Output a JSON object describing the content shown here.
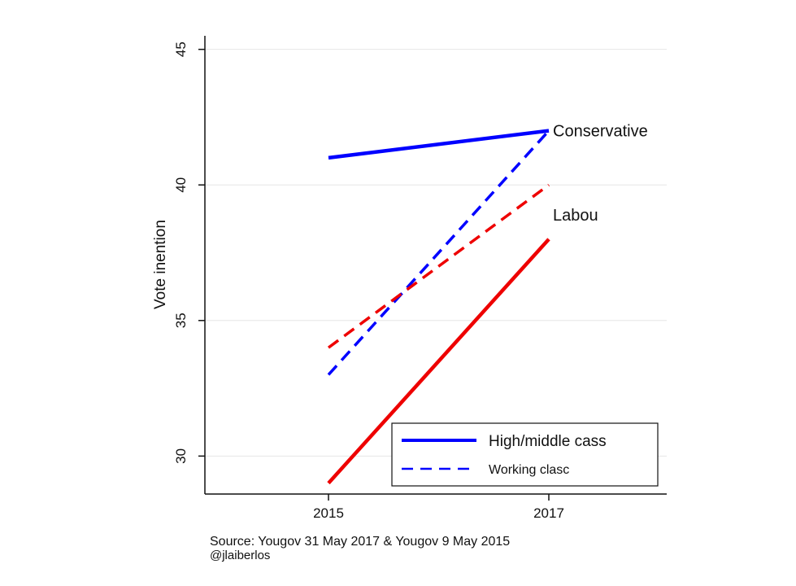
{
  "chart_data": {
    "type": "line",
    "x": [
      "2015",
      "2017"
    ],
    "ylabel": "Vote inention",
    "xlabel": "",
    "ylim": [
      28.6,
      45.5
    ],
    "yticks": [
      30,
      35,
      40,
      45
    ],
    "grid": true,
    "series": [
      {
        "name": "Conservative",
        "class": "High/middle cass",
        "color": "#0000ff",
        "dash": "solid",
        "values": [
          41,
          42
        ]
      },
      {
        "name": "Conservative",
        "class": "Working clasc",
        "color": "#0000ff",
        "dash": "dashed",
        "values": [
          33,
          42
        ]
      },
      {
        "name": "Labou",
        "class": "Working clasc",
        "color": "#ee0000",
        "dash": "dashed",
        "values": [
          34,
          40
        ]
      },
      {
        "name": "Labou",
        "class": "High/middle cass",
        "color": "#ee0000",
        "dash": "solid",
        "values": [
          29,
          38
        ]
      }
    ],
    "labels": [
      {
        "text": "Conservative",
        "x": "2017",
        "y": 42
      },
      {
        "text": "Labou",
        "x": "2017",
        "y": 38.9
      }
    ],
    "legend": {
      "placement": "bottom-right",
      "entries": [
        {
          "label": "High/middle cass",
          "color": "#0000ff",
          "dash": "solid"
        },
        {
          "label": "Working clasc",
          "color": "#0000ff",
          "dash": "dashed"
        }
      ]
    }
  },
  "source_note": "Source: Yougov 31 May 2017 & Yougov 9 May 2015",
  "handle_note": "@jlaiberlos"
}
